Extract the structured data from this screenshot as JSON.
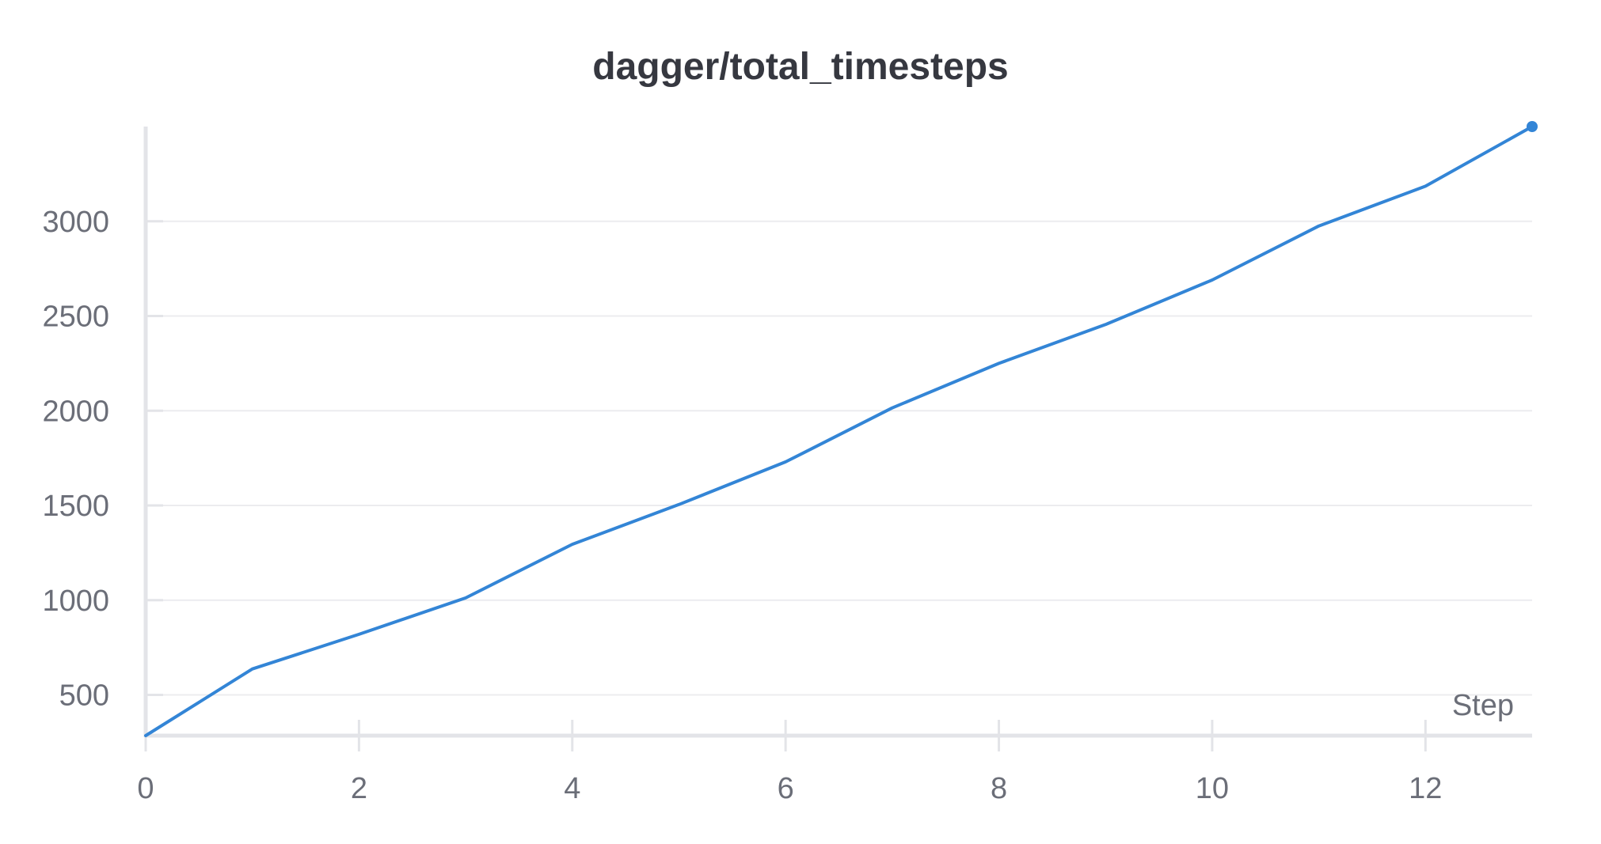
{
  "chart_data": {
    "type": "line",
    "title": "dagger/total_timesteps",
    "xlabel": "Step",
    "ylabel": "",
    "xlim": [
      0,
      13
    ],
    "ylim": [
      285,
      3500
    ],
    "x_ticks": [
      0,
      2,
      4,
      6,
      8,
      10,
      12
    ],
    "y_ticks": [
      500,
      1000,
      1500,
      2000,
      2500,
      3000
    ],
    "grid": true,
    "series": [
      {
        "color": "#3385d6",
        "x": [
          0,
          1,
          2,
          3,
          4,
          5,
          6,
          7,
          8,
          9,
          10,
          11,
          12,
          13
        ],
        "y": [
          285,
          637,
          820,
          1012,
          1295,
          1505,
          1730,
          2015,
          2250,
          2455,
          2690,
          2975,
          3185,
          3500
        ],
        "last_point_marker": true
      }
    ]
  }
}
